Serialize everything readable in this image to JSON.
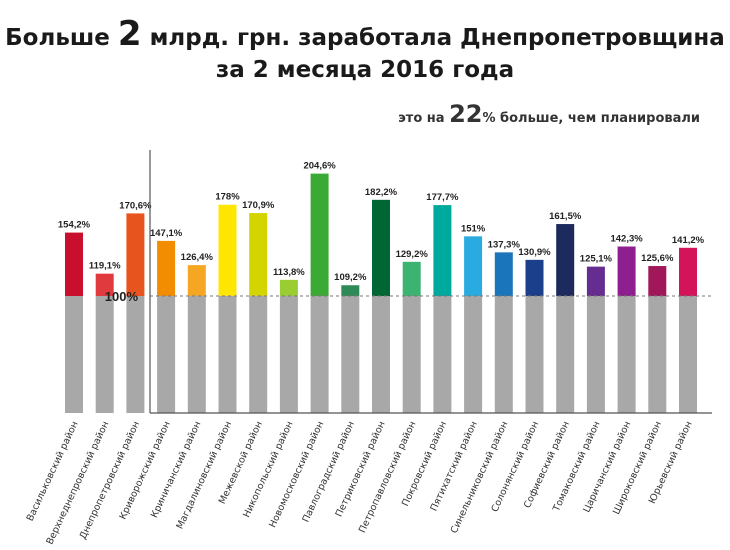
{
  "header": {
    "title_pre": "Больше ",
    "title_big": "2",
    "title_post": " млрд. грн. заработала Днепропетровщина",
    "title_line2": "за 2 месяца 2016 года",
    "sub_pre": "это на ",
    "sub_big": "22",
    "sub_post": "% больше, чем планировали"
  },
  "chart_data": {
    "type": "bar",
    "title": "Больше 2 млрд. грн. заработала Днепропетровщина за 2 месяца 2016 года",
    "baseline_label": "100%",
    "baseline": 100,
    "ylim": [
      0,
      227
    ],
    "categories": [
      "Васильковский район",
      "Верхнеднепровский район",
      "Днепропетровский район",
      "Криворожский район",
      "Криничанский район",
      "Магдалиновский район",
      "Межевской район",
      "Никопольский район",
      "Новомосковский район",
      "Павлоградский район",
      "Петриковский район",
      "Петропавловский район",
      "Покровский район",
      "Пятихатский район",
      "Синельниковский район",
      "Солонянский район",
      "Софиевский район",
      "Томаковский район",
      "Царичанский район",
      "Широковский район",
      "Юрьевский район"
    ],
    "values": [
      154.2,
      119.1,
      170.6,
      147.1,
      126.4,
      178,
      170.9,
      113.8,
      204.6,
      109.2,
      182.2,
      129.2,
      177.7,
      151,
      137.3,
      130.9,
      161.5,
      125.1,
      142.3,
      125.6,
      141.2
    ],
    "labels": [
      "154,2%",
      "119,1%",
      "170,6%",
      "147,1%",
      "126,4%",
      "178%",
      "170,9%",
      "113,8%",
      "204,6%",
      "109,2%",
      "182,2%",
      "129,2%",
      "177,7%",
      "151%",
      "137,3%",
      "130,9%",
      "161,5%",
      "125,1%",
      "142,3%",
      "125,6%",
      "141,2%"
    ],
    "colors": [
      "#c8102e",
      "#e03a3e",
      "#e8541e",
      "#f28c00",
      "#f5a623",
      "#ffe600",
      "#d4d400",
      "#9acd32",
      "#3aaa35",
      "#2e8b57",
      "#006633",
      "#3cb371",
      "#00a99d",
      "#29abe2",
      "#1a75bb",
      "#1b3f8b",
      "#1c2a5e",
      "#662d91",
      "#8e1f8e",
      "#a0185a",
      "#d4145a"
    ],
    "base_color": "#a8a8a8"
  }
}
